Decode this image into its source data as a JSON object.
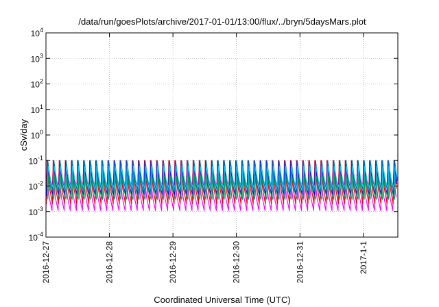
{
  "chart_data": {
    "type": "line",
    "title": "/data/run/goesPlots/archive/2017-01-01/13:00/flux/../bryn/5daysMars.plot",
    "xlabel": "Coordinated Universal Time (UTC)",
    "ylabel": "cSv/day",
    "y_scale": "log",
    "ylim": [
      0.0001,
      10000
    ],
    "xlim": [
      "2016-12-27 00:00",
      "2017-01-01 13:00"
    ],
    "grid": true,
    "grid_style": "dotted",
    "legend": "none",
    "y_ticks": [
      {
        "base": "10",
        "exp": "4",
        "value": 10000
      },
      {
        "base": "10",
        "exp": "3",
        "value": 1000
      },
      {
        "base": "10",
        "exp": "2",
        "value": 100
      },
      {
        "base": "10",
        "exp": "1",
        "value": 10
      },
      {
        "base": "10",
        "exp": "0",
        "value": 1
      },
      {
        "base": "10",
        "exp": "-1",
        "value": 0.1
      },
      {
        "base": "10",
        "exp": "-2",
        "value": 0.01
      },
      {
        "base": "10",
        "exp": "-3",
        "value": 0.001
      },
      {
        "base": "10",
        "exp": "-4",
        "value": 0.0001
      }
    ],
    "x_ticks": [
      {
        "label": "2016-12-27",
        "value": "2016-12-27 00:00"
      },
      {
        "label": "2016-12-28",
        "value": "2016-12-28 00:00"
      },
      {
        "label": "2016-12-29",
        "value": "2016-12-29 00:00"
      },
      {
        "label": "2016-12-30",
        "value": "2016-12-30 00:00"
      },
      {
        "label": "2016-12-31",
        "value": "2016-12-31 00:00"
      },
      {
        "label": "2017-1-1",
        "value": "2017-01-01 00:00"
      }
    ],
    "pattern": {
      "cycle_period_hours": 2.3,
      "cycle_count": 58,
      "shape": "sawtooth: sharp rise then decay"
    },
    "series": [
      {
        "color": "#ff00ff",
        "peak": 0.03,
        "trough": 0.0011
      },
      {
        "color": "#ff0000",
        "peak": 0.1,
        "trough": 0.002
      },
      {
        "color": "#0000ff",
        "peak": 0.095,
        "trough": 0.004
      },
      {
        "color": "#0070c0",
        "peak": 0.1,
        "trough": 0.006
      },
      {
        "color": "#00d0ff",
        "peak": 0.06,
        "trough": 0.008
      },
      {
        "color": "#00a050",
        "peak": 0.025,
        "trough": 0.003
      }
    ]
  }
}
